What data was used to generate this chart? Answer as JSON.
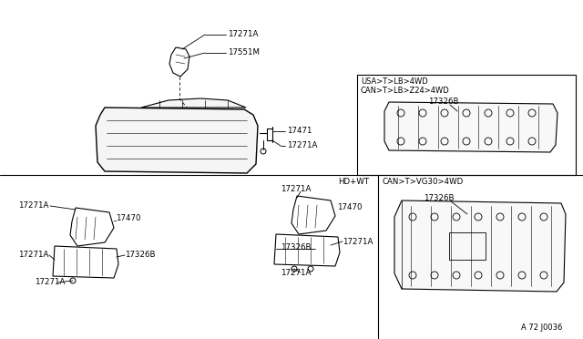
{
  "bg_color": "#ffffff",
  "line_color": "#000000",
  "text_color": "#000000",
  "diagram_number": "A 72 J0036",
  "box1_label1": "USA>T>LB>4WD",
  "box1_label2": "CAN>T>LB>Z24>4WD",
  "box2_label": "HD+WT",
  "box3_label": "CAN>T>VG30>4WD",
  "p17271A": "17271A",
  "p17551M": "17551M",
  "p17471": "17471",
  "p17470": "17470",
  "p17326B": "17326B"
}
